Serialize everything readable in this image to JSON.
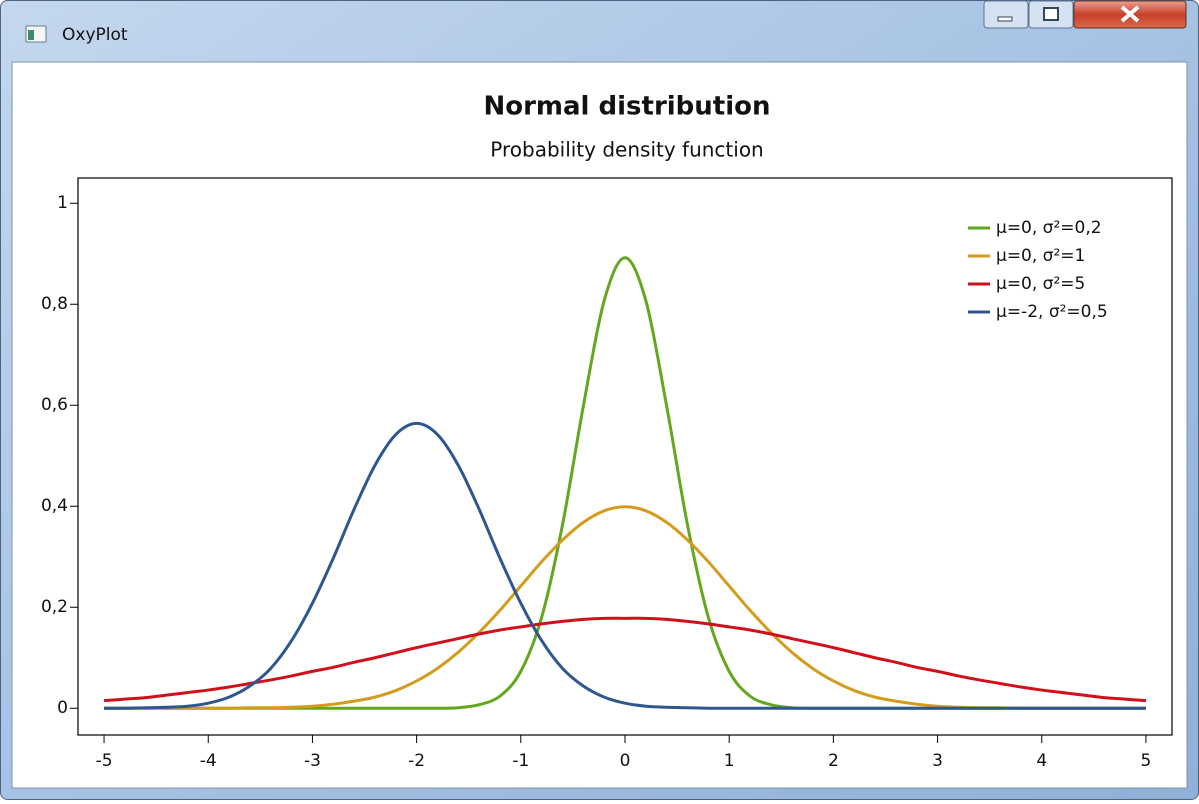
{
  "window": {
    "title": "OxyPlot"
  },
  "chart_data": {
    "type": "line",
    "title": "Normal distribution",
    "subtitle": "Probability density function",
    "x": [
      -5,
      -4.8,
      -4.6,
      -4.4,
      -4.2,
      -4,
      -3.8,
      -3.6,
      -3.4,
      -3.2,
      -3,
      -2.8,
      -2.6,
      -2.4,
      -2.2,
      -2,
      -1.8,
      -1.6,
      -1.4,
      -1.2,
      -1,
      -0.8,
      -0.6,
      -0.4,
      -0.2,
      0,
      0.2,
      0.4,
      0.6,
      0.8,
      1,
      1.2,
      1.4,
      1.6,
      1.8,
      2,
      2.2,
      2.4,
      2.6,
      2.8,
      3,
      3.2,
      3.4,
      3.6,
      3.8,
      4,
      4.2,
      4.4,
      4.6,
      4.8,
      5
    ],
    "series": [
      {
        "name": "μ=0, σ²=0,2",
        "color": "#62a81e",
        "values": [
          0,
          0,
          0,
          0,
          0,
          0,
          0,
          0,
          0,
          0,
          0,
          0,
          0,
          0,
          0,
          0,
          0,
          0.001,
          0.007,
          0.024,
          0.073,
          0.18,
          0.363,
          0.598,
          0.807,
          0.892,
          0.807,
          0.598,
          0.363,
          0.18,
          0.073,
          0.024,
          0.007,
          0.001,
          0,
          0,
          0,
          0,
          0,
          0,
          0,
          0,
          0,
          0,
          0,
          0,
          0,
          0,
          0,
          0,
          0
        ]
      },
      {
        "name": "μ=0, σ²=1",
        "color": "#d49c1c",
        "values": [
          0,
          0,
          0,
          0,
          0,
          0,
          0,
          0.001,
          0.001,
          0.002,
          0.004,
          0.008,
          0.014,
          0.022,
          0.035,
          0.054,
          0.079,
          0.111,
          0.15,
          0.194,
          0.242,
          0.29,
          0.333,
          0.368,
          0.391,
          0.399,
          0.391,
          0.368,
          0.333,
          0.29,
          0.242,
          0.194,
          0.15,
          0.111,
          0.079,
          0.054,
          0.035,
          0.022,
          0.014,
          0.008,
          0.004,
          0.002,
          0.001,
          0.001,
          0,
          0,
          0,
          0,
          0,
          0,
          0
        ]
      },
      {
        "name": "μ=0, σ²=5",
        "color": "#d0101a",
        "values": [
          0.015,
          0.018,
          0.021,
          0.026,
          0.031,
          0.036,
          0.042,
          0.049,
          0.056,
          0.064,
          0.073,
          0.081,
          0.091,
          0.1,
          0.11,
          0.12,
          0.129,
          0.138,
          0.147,
          0.155,
          0.161,
          0.167,
          0.172,
          0.176,
          0.178,
          0.178,
          0.178,
          0.176,
          0.172,
          0.167,
          0.161,
          0.155,
          0.147,
          0.138,
          0.129,
          0.12,
          0.11,
          0.1,
          0.091,
          0.081,
          0.073,
          0.064,
          0.056,
          0.049,
          0.042,
          0.036,
          0.031,
          0.026,
          0.021,
          0.018,
          0.015
        ]
      },
      {
        "name": "μ=-2, σ²=0,5",
        "color": "#2e5790",
        "values": [
          0,
          0,
          0.001,
          0.002,
          0.004,
          0.01,
          0.022,
          0.044,
          0.079,
          0.134,
          0.208,
          0.297,
          0.394,
          0.481,
          0.542,
          0.564,
          0.542,
          0.481,
          0.394,
          0.297,
          0.208,
          0.134,
          0.079,
          0.044,
          0.022,
          0.01,
          0.004,
          0.002,
          0.001,
          0,
          0,
          0,
          0,
          0,
          0,
          0,
          0,
          0,
          0,
          0,
          0,
          0,
          0,
          0,
          0,
          0,
          0,
          0,
          0,
          0,
          0
        ]
      }
    ],
    "xlim": [
      -5.25,
      5.25
    ],
    "ylim": [
      -0.053,
      1.05
    ],
    "xticks": [
      -5,
      -4,
      -3,
      -2,
      -1,
      0,
      1,
      2,
      3,
      4,
      5
    ],
    "yticks": [
      0,
      {
        "value": 0.2,
        "label": "0,2"
      },
      {
        "value": 0.4,
        "label": "0,4"
      },
      {
        "value": 0.6,
        "label": "0,6"
      },
      {
        "value": 0.8,
        "label": "0,8"
      },
      1
    ],
    "legend": "top-right",
    "grid": false
  }
}
